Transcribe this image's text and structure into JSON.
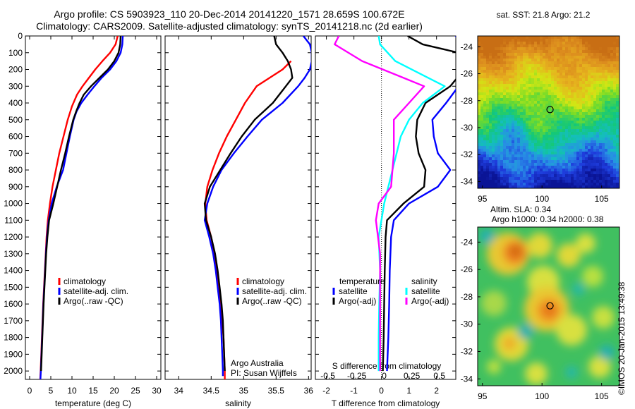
{
  "header": {
    "title_line1": "Argo profile: CS 5903923_110 20-Dec-2014 20141220_1571 28.659S 100.672E",
    "title_line2": "Climatology: CARS2009. Satellite-adjusted climatology: synTS_20141218.nc (2d earlier)"
  },
  "stamp": "©IMOS 20-Jan-2015 13:49:38",
  "colors": {
    "climatology": "#ff0000",
    "satellite": "#0000ff",
    "argo": "#000000",
    "argo_salinity": "#ff00ff",
    "satellite_salinity": "#00ffff"
  },
  "chart_data": [
    {
      "type": "line",
      "xlabel": "temperature (deg C)",
      "xticks": [
        0,
        5,
        10,
        15,
        20,
        25,
        30
      ],
      "xlim": [
        -1,
        31
      ],
      "ylim": [
        2050,
        0
      ],
      "yticks": [
        0,
        100,
        200,
        300,
        400,
        500,
        600,
        700,
        800,
        900,
        1000,
        1100,
        1200,
        1300,
        1400,
        1500,
        1600,
        1700,
        1800,
        1900,
        2000
      ],
      "legend": [
        "climatology",
        "satellite-adj. clim.",
        "Argo(..raw -QC)"
      ],
      "series": [
        {
          "name": "climatology",
          "color": "#ff0000",
          "points": [
            [
              20.8,
              0
            ],
            [
              20.3,
              50
            ],
            [
              19,
              100
            ],
            [
              17.2,
              150
            ],
            [
              15.5,
              200
            ],
            [
              14,
              250
            ],
            [
              12.5,
              300
            ],
            [
              11.2,
              350
            ],
            [
              10,
              420
            ],
            [
              9,
              500
            ],
            [
              8,
              600
            ],
            [
              7,
              700
            ],
            [
              6.2,
              800
            ],
            [
              5.4,
              900
            ],
            [
              4.8,
              1000
            ],
            [
              4.3,
              1100
            ],
            [
              4,
              1200
            ],
            [
              3.8,
              1300
            ],
            [
              3.6,
              1400
            ],
            [
              3.4,
              1500
            ],
            [
              3.2,
              1600
            ],
            [
              3.05,
              1700
            ],
            [
              2.9,
              1800
            ],
            [
              2.75,
              1900
            ],
            [
              2.6,
              2000
            ],
            [
              2.5,
              2050
            ]
          ]
        },
        {
          "name": "satellite-adj. clim.",
          "color": "#0000ff",
          "points": [
            [
              22,
              0
            ],
            [
              21.9,
              50
            ],
            [
              21.5,
              100
            ],
            [
              20.5,
              150
            ],
            [
              19,
              200
            ],
            [
              17,
              250
            ],
            [
              15.3,
              300
            ],
            [
              13.7,
              350
            ],
            [
              12.2,
              400
            ],
            [
              11.1,
              450
            ],
            [
              10.4,
              500
            ],
            [
              9.5,
              600
            ],
            [
              8.7,
              700
            ],
            [
              7.9,
              800
            ],
            [
              6.4,
              900
            ],
            [
              5.2,
              1000
            ],
            [
              4.5,
              1100
            ],
            [
              4.1,
              1200
            ],
            [
              3.85,
              1300
            ],
            [
              3.65,
              1400
            ],
            [
              3.45,
              1500
            ],
            [
              3.25,
              1600
            ],
            [
              3.1,
              1700
            ],
            [
              2.95,
              1800
            ],
            [
              2.8,
              1900
            ],
            [
              2.65,
              2000
            ],
            [
              2.55,
              2050
            ]
          ]
        },
        {
          "name": "Argo(..raw -QC)",
          "color": "#000000",
          "points": [
            [
              21.5,
              0
            ],
            [
              21.4,
              50
            ],
            [
              21,
              100
            ],
            [
              20,
              150
            ],
            [
              18.5,
              200
            ],
            [
              16.5,
              250
            ],
            [
              14.5,
              300
            ],
            [
              12.8,
              350
            ],
            [
              11.8,
              400
            ],
            [
              11,
              450
            ],
            [
              10.3,
              500
            ],
            [
              9.3,
              600
            ],
            [
              8.4,
              700
            ],
            [
              7.4,
              800
            ],
            [
              6.5,
              900
            ],
            [
              5.6,
              1000
            ],
            [
              4.6,
              1100
            ],
            [
              4.2,
              1200
            ],
            [
              3.9,
              1300
            ],
            [
              3.7,
              1400
            ],
            [
              3.5,
              1500
            ],
            [
              3.3,
              1600
            ],
            [
              3.15,
              1700
            ],
            [
              3,
              1800
            ],
            [
              2.85,
              1900
            ],
            [
              2.7,
              2000
            ]
          ]
        }
      ]
    },
    {
      "type": "line",
      "xlabel": "salinity",
      "xticks": [
        34,
        34.5,
        35,
        35.5,
        36
      ],
      "xlim": [
        33.79,
        36.04
      ],
      "ylim": [
        2050,
        0
      ],
      "legend": [
        "climatology",
        "satellite-adj. clim.",
        "Argo(..raw -QC)"
      ],
      "annotation": [
        "Argo Australia",
        "PI: Susan Wijffels"
      ],
      "series": [
        {
          "name": "climatology",
          "color": "#ff0000",
          "points": [
            [
              35.73,
              150
            ],
            [
              35.6,
              200
            ],
            [
              35.4,
              250
            ],
            [
              35.2,
              300
            ],
            [
              35.02,
              400
            ],
            [
              34.88,
              500
            ],
            [
              34.74,
              600
            ],
            [
              34.62,
              700
            ],
            [
              34.52,
              800
            ],
            [
              34.44,
              900
            ],
            [
              34.41,
              1000
            ],
            [
              34.43,
              1100
            ],
            [
              34.5,
              1200
            ],
            [
              34.55,
              1300
            ],
            [
              34.59,
              1400
            ],
            [
              34.62,
              1500
            ],
            [
              34.65,
              1600
            ],
            [
              34.67,
              1700
            ],
            [
              34.69,
              1800
            ],
            [
              34.7,
              1900
            ],
            [
              34.71,
              2000
            ],
            [
              34.71,
              2050
            ]
          ]
        },
        {
          "name": "satellite-adj. clim.",
          "color": "#0000ff",
          "points": [
            [
              35.92,
              0
            ],
            [
              36.02,
              50
            ],
            [
              36.05,
              100
            ],
            [
              36.05,
              150
            ],
            [
              36.02,
              200
            ],
            [
              35.94,
              250
            ],
            [
              35.84,
              300
            ],
            [
              35.6,
              400
            ],
            [
              35.28,
              500
            ],
            [
              35.06,
              600
            ],
            [
              34.85,
              700
            ],
            [
              34.66,
              800
            ],
            [
              34.53,
              900
            ],
            [
              34.44,
              1000
            ],
            [
              34.4,
              1100
            ],
            [
              34.47,
              1200
            ],
            [
              34.53,
              1300
            ],
            [
              34.57,
              1400
            ],
            [
              34.6,
              1500
            ],
            [
              34.63,
              1600
            ],
            [
              34.65,
              1700
            ],
            [
              34.66,
              1800
            ],
            [
              34.67,
              1900
            ],
            [
              34.68,
              2000
            ],
            [
              34.68,
              2030
            ]
          ]
        },
        {
          "name": "Argo(..raw -QC)",
          "color": "#000000",
          "points": [
            [
              35.47,
              0
            ],
            [
              35.5,
              50
            ],
            [
              35.6,
              100
            ],
            [
              35.68,
              150
            ],
            [
              35.73,
              200
            ],
            [
              35.75,
              250
            ],
            [
              35.65,
              300
            ],
            [
              35.45,
              400
            ],
            [
              35.17,
              500
            ],
            [
              34.97,
              600
            ],
            [
              34.8,
              700
            ],
            [
              34.64,
              800
            ],
            [
              34.48,
              900
            ],
            [
              34.4,
              1000
            ],
            [
              34.42,
              1100
            ],
            [
              34.5,
              1200
            ],
            [
              34.56,
              1300
            ],
            [
              34.6,
              1400
            ],
            [
              34.63,
              1500
            ],
            [
              34.66,
              1600
            ],
            [
              34.68,
              1700
            ],
            [
              34.69,
              1800
            ],
            [
              34.7,
              1900
            ],
            [
              34.71,
              2000
            ]
          ]
        }
      ]
    },
    {
      "type": "line",
      "xlabel": "T difference from climatology",
      "xlabel2": "S difference from climatology",
      "xticks": [
        -2,
        -1,
        0,
        1,
        2
      ],
      "xticks2": [
        "-0.5",
        "-0.25",
        "0",
        "0.25",
        "0.5"
      ],
      "xlim": [
        -2.4,
        2.7
      ],
      "ylim": [
        2050,
        0
      ],
      "legend_left_title": "temperature",
      "legend_right_title": "salinity",
      "legend": [
        "satellite",
        "Argo(-adj)",
        "satellite",
        "Argo(-adj)"
      ],
      "series": [
        {
          "name": "temperature satellite",
          "color": "#0000ff",
          "points": [
            [
              2.7,
              0
            ],
            [
              2.9,
              50
            ],
            [
              3.0,
              100
            ],
            [
              2.8,
              300
            ],
            [
              2.35,
              400
            ],
            [
              1.85,
              500
            ],
            [
              1.9,
              600
            ],
            [
              2.05,
              700
            ],
            [
              2.5,
              800
            ],
            [
              2.05,
              900
            ],
            [
              1.0,
              1000
            ],
            [
              0.45,
              1100
            ],
            [
              0.35,
              1200
            ],
            [
              0.3,
              1400
            ],
            [
              0.28,
              1600
            ],
            [
              0.25,
              1800
            ],
            [
              0.2,
              2000
            ]
          ]
        },
        {
          "name": "temperature Argo(-adj)",
          "color": "#000000",
          "points": [
            [
              0.95,
              0
            ],
            [
              1.5,
              50
            ],
            [
              2.8,
              100
            ],
            [
              3.0,
              200
            ],
            [
              2.5,
              300
            ],
            [
              1.6,
              400
            ],
            [
              1.3,
              500
            ],
            [
              1.25,
              600
            ],
            [
              1.35,
              700
            ],
            [
              1.6,
              800
            ],
            [
              1.55,
              900
            ],
            [
              0.8,
              1000
            ],
            [
              0.2,
              1100
            ],
            [
              0.15,
              1200
            ],
            [
              0.12,
              1400
            ],
            [
              0.1,
              1600
            ],
            [
              0.08,
              1800
            ],
            [
              0.05,
              2000
            ]
          ]
        },
        {
          "name": "salinity satellite",
          "color": "#00ffff",
          "points": [
            [
              -0.1,
              0
            ],
            [
              -0.05,
              50
            ],
            [
              0.5,
              150
            ],
            [
              1.7,
              250
            ],
            [
              2.3,
              300
            ],
            [
              1.5,
              400
            ],
            [
              1.0,
              500
            ],
            [
              0.7,
              600
            ],
            [
              0.4,
              800
            ],
            [
              0.1,
              1000
            ],
            [
              -0.1,
              1200
            ],
            [
              -0.05,
              1400
            ],
            [
              -0.08,
              1600
            ],
            [
              -0.1,
              1800
            ],
            [
              -0.1,
              2000
            ]
          ]
        },
        {
          "name": "salinity Argo(-adj)",
          "color": "#ff00ff",
          "points": [
            [
              -1.55,
              0
            ],
            [
              -1.7,
              50
            ],
            [
              -0.7,
              150
            ],
            [
              0.8,
              250
            ],
            [
              1.55,
              300
            ],
            [
              1.0,
              400
            ],
            [
              0.45,
              500
            ],
            [
              0.45,
              700
            ],
            [
              0.35,
              900
            ],
            [
              -0.1,
              1000
            ],
            [
              -0.2,
              1100
            ],
            [
              -0.05,
              1300
            ],
            [
              -0.05,
              1500
            ],
            [
              -0.05,
              1700
            ],
            [
              -0.05,
              2000
            ]
          ]
        }
      ]
    },
    {
      "type": "heatmap",
      "title": "sat. SST: 21.8 Argo: 21.2",
      "xticks": [
        95,
        100,
        105
      ],
      "yticks": [
        -24,
        -26,
        -28,
        -30,
        -32,
        -34
      ],
      "xlim": [
        94.6,
        106.5
      ],
      "ylim": [
        -34.5,
        -23.2
      ],
      "marker": [
        100.672,
        -28.659
      ],
      "colormap": "sst"
    },
    {
      "type": "heatmap",
      "title_line1": "Altim. SLA: 0.34",
      "title_line2": "Argo h1000: 0.34 h2000: 0.38",
      "xticks": [
        95,
        100,
        105
      ],
      "yticks": [
        -24,
        -26,
        -28,
        -30,
        -32,
        -34
      ],
      "xlim": [
        94.6,
        106.5
      ],
      "ylim": [
        -34.5,
        -22.9
      ],
      "marker": [
        100.672,
        -28.659
      ],
      "colormap": "sla"
    }
  ]
}
